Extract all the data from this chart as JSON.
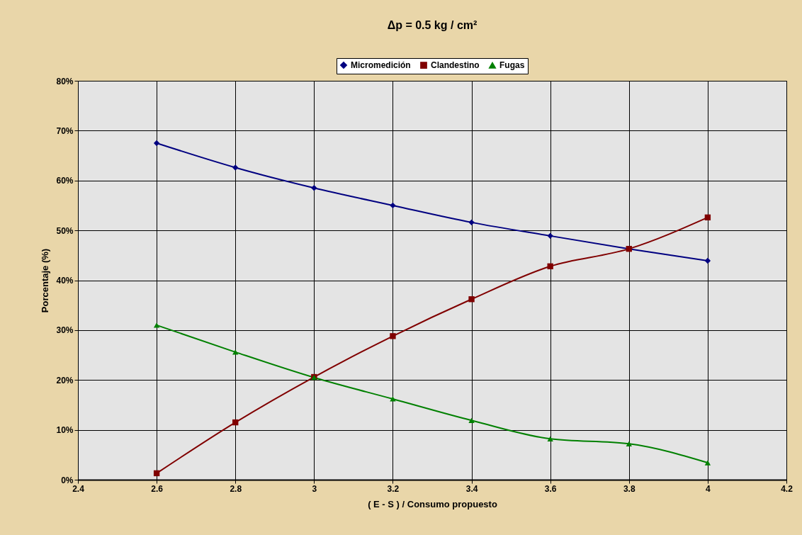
{
  "chart_data": {
    "type": "line",
    "title": "Δp = 0.5 kg / cm²",
    "xlabel": "( E - S ) / Consumo propuesto",
    "ylabel": "Porcentaje (%)",
    "x": [
      2.6,
      2.8,
      3.0,
      3.2,
      3.4,
      3.6,
      3.8,
      4.0
    ],
    "series": [
      {
        "name": "Micromedición",
        "color": "#000080",
        "marker": "diamond",
        "values": [
          67.5,
          62.6,
          58.5,
          55.0,
          51.6,
          48.9,
          46.3,
          43.9
        ]
      },
      {
        "name": "Clandestino",
        "color": "#800000",
        "marker": "square",
        "values": [
          1.3,
          11.5,
          20.6,
          28.8,
          36.2,
          42.8,
          46.3,
          52.6
        ]
      },
      {
        "name": "Fugas",
        "color": "#008000",
        "marker": "triangle",
        "values": [
          31.0,
          25.6,
          20.5,
          16.2,
          11.9,
          8.2,
          7.2,
          3.4
        ]
      }
    ],
    "xlim": [
      2.4,
      4.2
    ],
    "xticks": [
      2.4,
      2.6,
      2.8,
      3,
      3.2,
      3.4,
      3.6,
      3.8,
      4,
      4.2
    ],
    "ylim": [
      0,
      80
    ],
    "yticks": [
      {
        "value": 0,
        "label": "0%"
      },
      {
        "value": 10,
        "label": "10%"
      },
      {
        "value": 20,
        "label": "20%"
      },
      {
        "value": 30,
        "label": "30%"
      },
      {
        "value": 40,
        "label": "40%"
      },
      {
        "value": 50,
        "label": "50%"
      },
      {
        "value": 60,
        "label": "60%"
      },
      {
        "value": 70,
        "label": "70%"
      },
      {
        "value": 80,
        "label": "80%"
      }
    ],
    "grid": true,
    "legend": "top",
    "line_style": "solid"
  }
}
